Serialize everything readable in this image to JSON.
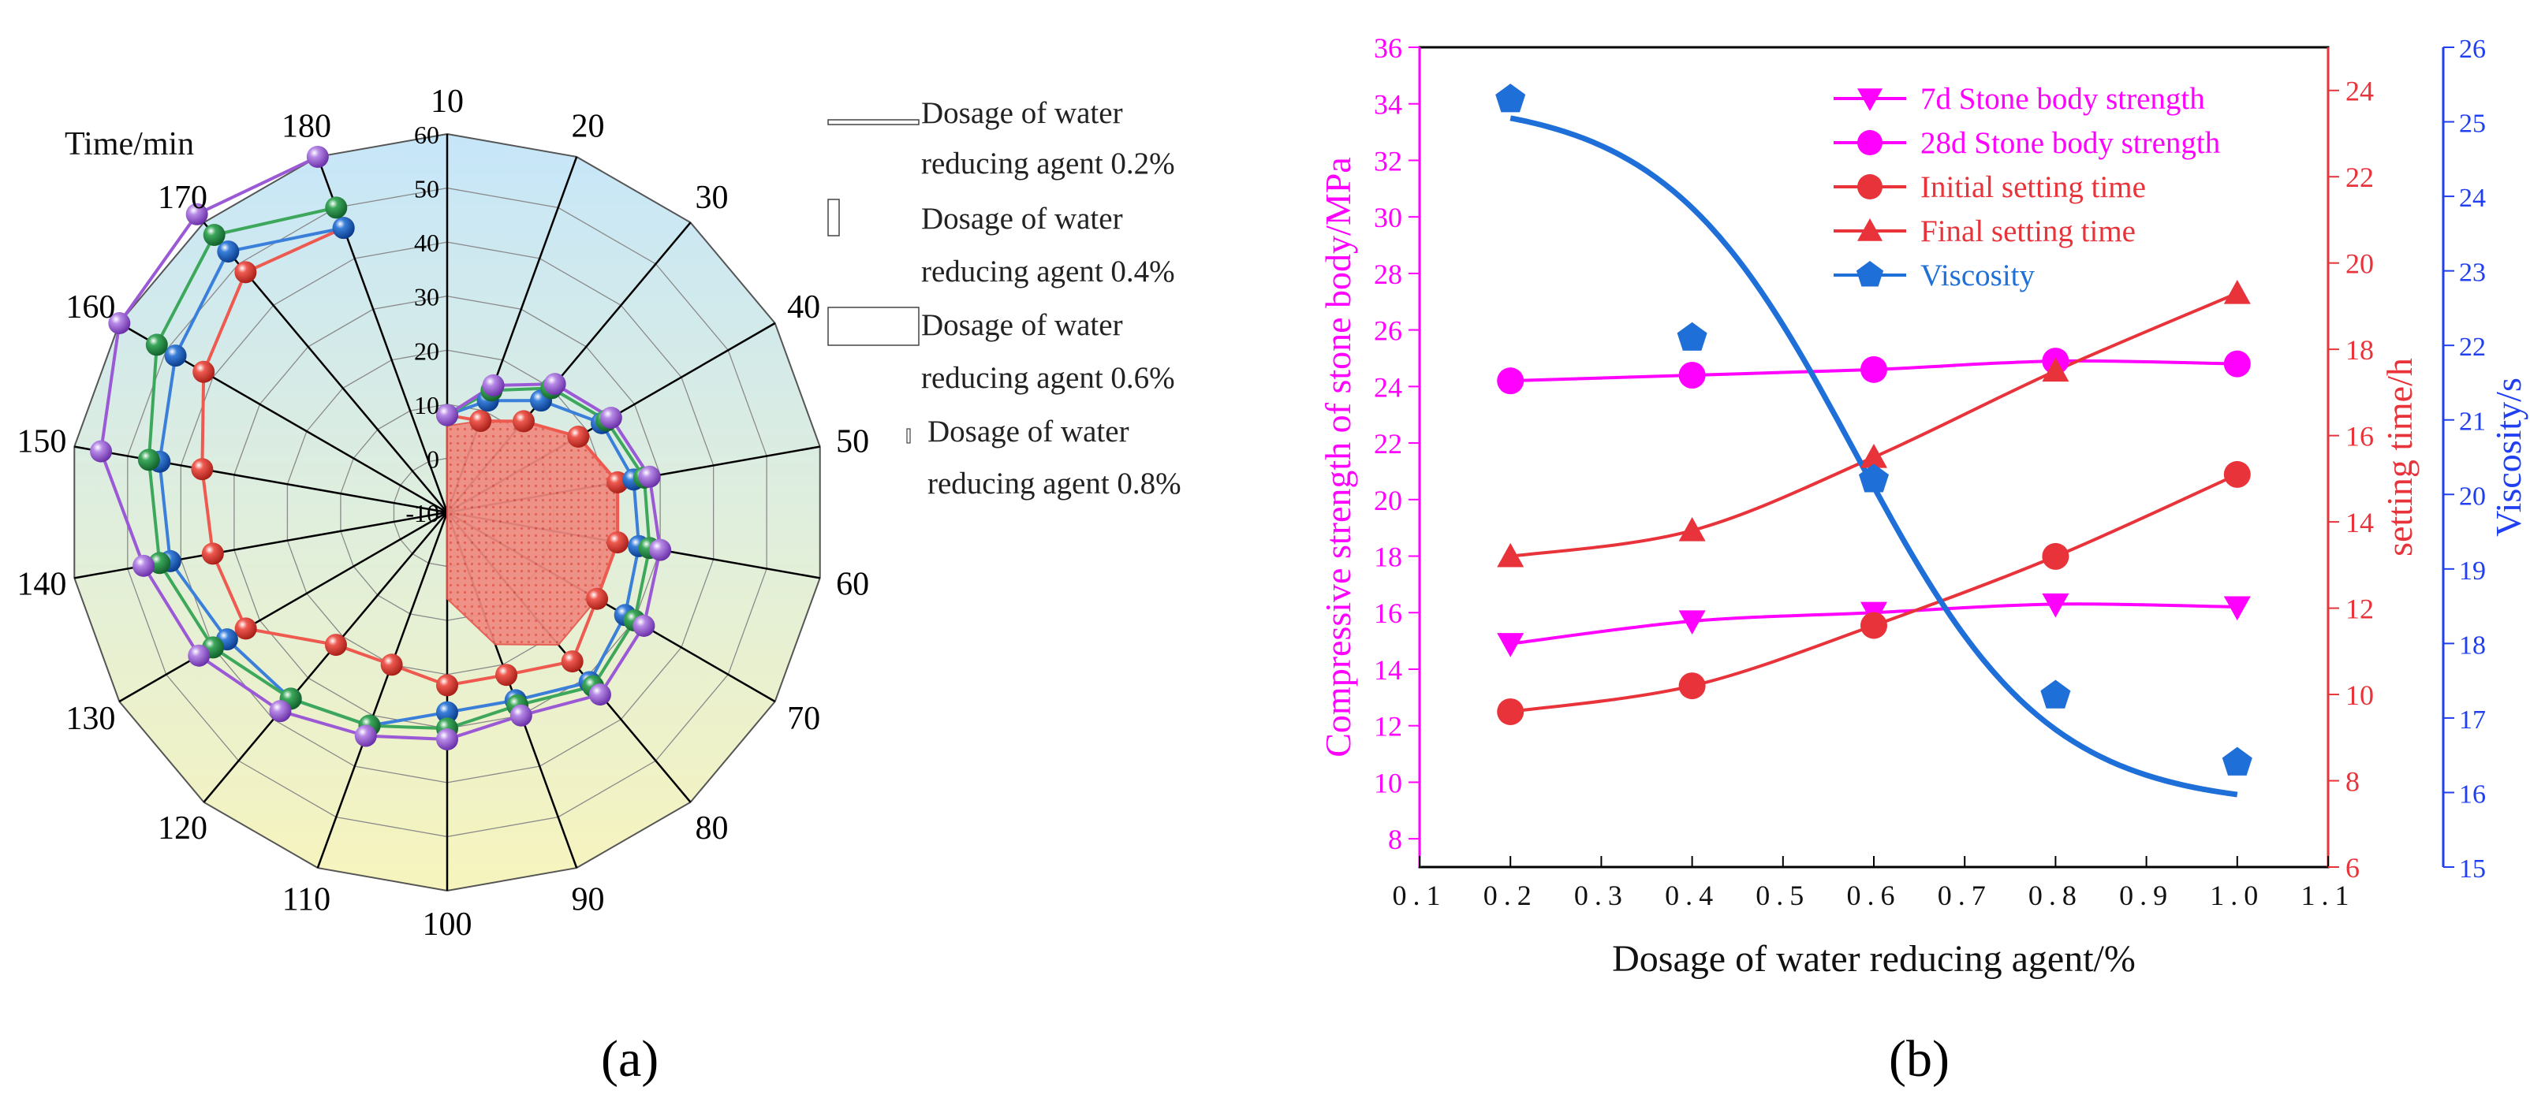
{
  "panel_labels": {
    "a": "(a)",
    "b": "(b)"
  },
  "chart_data": [
    {
      "type": "radar",
      "panel": "(a)",
      "title": "",
      "axis_title": "Time/min",
      "angle_labels": [
        "10",
        "20",
        "30",
        "40",
        "50",
        "60",
        "70",
        "80",
        "90",
        "100",
        "110",
        "120",
        "130",
        "140",
        "150",
        "160",
        "170",
        "180"
      ],
      "radial_tick_labels": [
        "-10",
        "0",
        "10",
        "20",
        "30",
        "40",
        "50",
        "60"
      ],
      "radial_range": [
        -10,
        60
      ],
      "legend": [
        {
          "line1": "Dosage of water",
          "line2": "reducing agent 0.2%"
        },
        {
          "line1": "Dosage of water",
          "line2": "reducing agent  0.4%"
        },
        {
          "line1": "Dosage of water",
          "line2": "reducing agent  0.6%"
        },
        {
          "line1": "Dosage of water",
          "line2": "reducing agent  0.8%"
        }
      ],
      "series": [
        {
          "name": "Dosage of water reducing agent 0.2%",
          "color": "#ee5a50",
          "values": [
            8,
            8,
            12,
            18,
            22,
            22,
            22,
            26,
            22,
            22,
            20,
            22,
            33,
            34,
            36,
            42,
            48,
            46
          ]
        },
        {
          "name": "Dosage of water reducing agent 0.4%",
          "color": "#3a7fd9",
          "values": [
            8,
            12,
            17,
            23,
            25,
            26,
            28,
            31,
            27,
            27,
            32,
            35,
            37,
            42,
            44,
            48,
            53,
            46
          ]
        },
        {
          "name": "Dosage of water reducing agent 0.6%",
          "color": "#3da85c",
          "values": [
            8,
            14,
            20,
            24,
            27,
            28,
            30,
            32,
            28,
            30,
            32,
            35,
            40,
            44,
            46,
            52,
            57,
            50
          ]
        },
        {
          "name": "Dosage of water reducing agent 0.8%",
          "color": "#9b59d6",
          "values": [
            8,
            15,
            21,
            25,
            28,
            30,
            32,
            34,
            30,
            32,
            34,
            38,
            43,
            47,
            55,
            60,
            62,
            60
          ]
        }
      ]
    },
    {
      "type": "line",
      "panel": "(b)",
      "title": "",
      "xlabel": "Dosage of water reducing agent/%",
      "ylabel_left": "Compressive strength of stone body/MPa",
      "ylabel_right1": "setting time/h",
      "ylabel_right2": "Viscosity/s",
      "x_tick_labels": [
        "0.1",
        "0.2",
        "0.3",
        "0.4",
        "0.5",
        "0.6",
        "0.7",
        "0.8",
        "0.9",
        "1.0",
        "1.1"
      ],
      "y_left_tick_labels": [
        "8",
        "10",
        "12",
        "14",
        "16",
        "18",
        "20",
        "22",
        "24",
        "26",
        "28",
        "30",
        "32",
        "34",
        "36"
      ],
      "y_right1_tick_labels": [
        "6",
        "8",
        "10",
        "12",
        "14",
        "16",
        "18",
        "20",
        "22",
        "24"
      ],
      "y_right2_tick_labels": [
        "15",
        "16",
        "17",
        "18",
        "19",
        "20",
        "21",
        "22",
        "23",
        "24",
        "25",
        "26"
      ],
      "xlim": [
        0.1,
        1.1
      ],
      "ylim_left": [
        7,
        36
      ],
      "ylim_right1": [
        6,
        25
      ],
      "ylim_right2": [
        15,
        26
      ],
      "x": [
        0.2,
        0.4,
        0.6,
        0.8,
        1.0
      ],
      "colors": {
        "left_axis": "#ff00ff",
        "right1_axis": "#e8333a",
        "right2_axis": "#1f3ff0"
      },
      "series": [
        {
          "name": "7d  Stone body strength",
          "axis": "left",
          "marker": "triangle-down",
          "color": "#ff00ff",
          "values": [
            14.9,
            15.7,
            16.0,
            16.3,
            16.2
          ]
        },
        {
          "name": "28d  Stone body strength",
          "axis": "left",
          "marker": "circle",
          "color": "#ff00ff",
          "values": [
            24.2,
            24.4,
            24.6,
            24.9,
            24.8
          ]
        },
        {
          "name": "Initial setting time",
          "axis": "right1",
          "marker": "circle",
          "color": "#e8333a",
          "values": [
            9.6,
            10.2,
            11.6,
            13.2,
            15.1
          ]
        },
        {
          "name": "Final setting time",
          "axis": "right1",
          "marker": "triangle-up",
          "color": "#e8333a",
          "values": [
            13.2,
            13.8,
            15.5,
            17.5,
            19.3
          ]
        },
        {
          "name": "Viscosity",
          "axis": "right2",
          "marker": "pentagon",
          "color": "#1f6fd9",
          "values": [
            25.3,
            22.1,
            20.2,
            17.3,
            16.4
          ]
        }
      ]
    }
  ]
}
